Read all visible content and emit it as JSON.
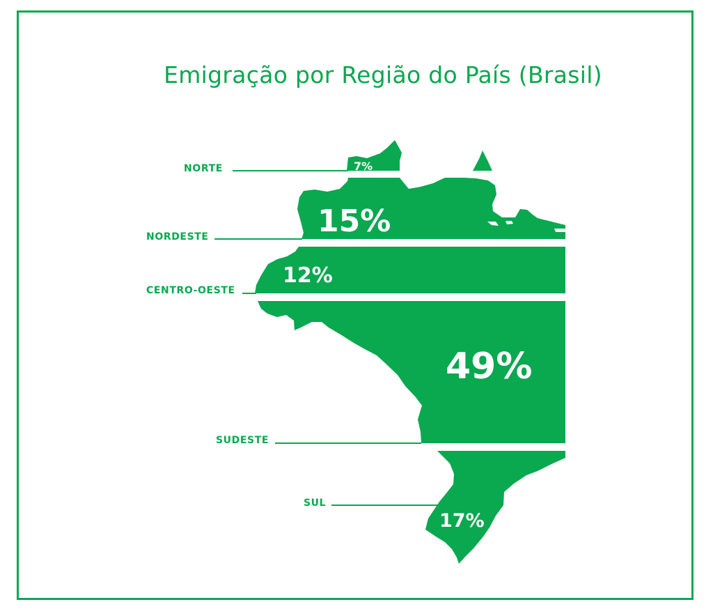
{
  "colors": {
    "accent": "#0aa84f",
    "background": "#ffffff",
    "label_on_map": "#ffffff"
  },
  "chart_data": {
    "type": "map",
    "title": "Emigração por Região do País (Brasil)",
    "regions": [
      {
        "name": "NORTE",
        "value": 7,
        "label": "7%"
      },
      {
        "name": "NORDESTE",
        "value": 15,
        "label": "15%"
      },
      {
        "name": "CENTRO-OESTE",
        "value": 12,
        "label": "12%"
      },
      {
        "name": "SUDESTE",
        "value": 49,
        "label": "49%"
      },
      {
        "name": "SUL",
        "value": 17,
        "label": "17%"
      }
    ]
  }
}
